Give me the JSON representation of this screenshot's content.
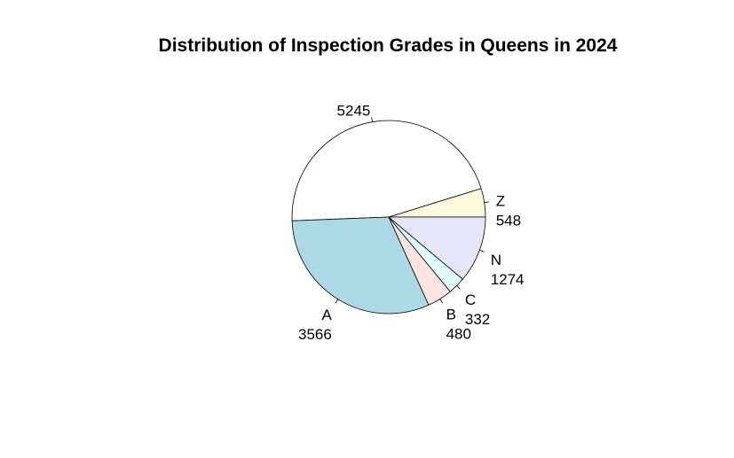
{
  "chart_data": {
    "type": "pie",
    "title": "Distribution of Inspection Grades in Queens in 2024",
    "direction": "counterclockwise",
    "start": "3 o'clock",
    "slices": [
      {
        "category": "Z",
        "value": 548,
        "color": "#fff8dc"
      },
      {
        "category": "",
        "value": 5245,
        "color": "#ffffff"
      },
      {
        "category": "A",
        "value": 3566,
        "color": "#add8e6"
      },
      {
        "category": "B",
        "value": 480,
        "color": "#ffe4e1"
      },
      {
        "category": "C",
        "value": 332,
        "color": "#e0ffff"
      },
      {
        "category": "N",
        "value": 1274,
        "color": "#e6e6fa"
      }
    ]
  }
}
